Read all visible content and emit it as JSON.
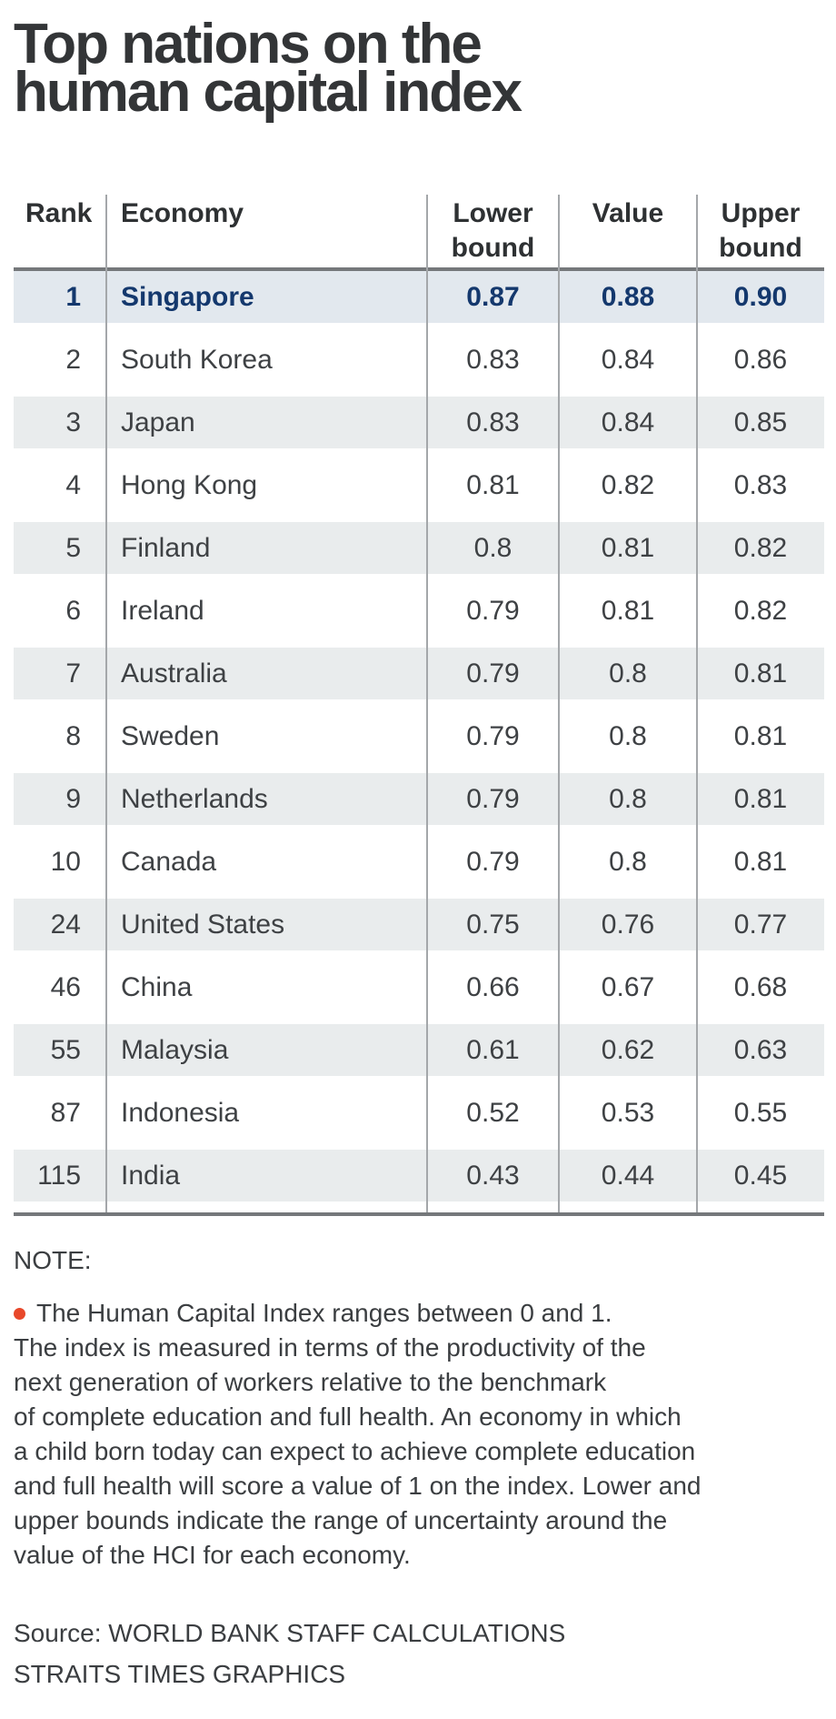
{
  "title": "Top nations on the\nhuman capital index",
  "chart_data": {
    "type": "table",
    "title": "Top nations on the human capital index",
    "columns": [
      "Rank",
      "Economy",
      "Lower bound",
      "Value",
      "Upper bound"
    ],
    "column_headers_display": [
      "Rank",
      "Economy",
      "Lower\nbound",
      "Value",
      "Upper\nbound"
    ],
    "rows": [
      {
        "rank": "1",
        "economy": "Singapore",
        "lower": "0.87",
        "value": "0.88",
        "upper": "0.90",
        "highlight": true
      },
      {
        "rank": "2",
        "economy": "South Korea",
        "lower": "0.83",
        "value": "0.84",
        "upper": "0.86",
        "highlight": false
      },
      {
        "rank": "3",
        "economy": "Japan",
        "lower": "0.83",
        "value": "0.84",
        "upper": "0.85",
        "highlight": false
      },
      {
        "rank": "4",
        "economy": "Hong Kong",
        "lower": "0.81",
        "value": "0.82",
        "upper": "0.83",
        "highlight": false
      },
      {
        "rank": "5",
        "economy": "Finland",
        "lower": "0.8",
        "value": "0.81",
        "upper": "0.82",
        "highlight": false
      },
      {
        "rank": "6",
        "economy": "Ireland",
        "lower": "0.79",
        "value": "0.81",
        "upper": "0.82",
        "highlight": false
      },
      {
        "rank": "7",
        "economy": "Australia",
        "lower": "0.79",
        "value": "0.8",
        "upper": "0.81",
        "highlight": false
      },
      {
        "rank": "8",
        "economy": "Sweden",
        "lower": "0.79",
        "value": "0.8",
        "upper": "0.81",
        "highlight": false
      },
      {
        "rank": "9",
        "economy": "Netherlands",
        "lower": "0.79",
        "value": "0.8",
        "upper": "0.81",
        "highlight": false
      },
      {
        "rank": "10",
        "economy": "Canada",
        "lower": "0.79",
        "value": "0.8",
        "upper": "0.81",
        "highlight": false
      },
      {
        "rank": "24",
        "economy": "United States",
        "lower": "0.75",
        "value": "0.76",
        "upper": "0.77",
        "highlight": false
      },
      {
        "rank": "46",
        "economy": "China",
        "lower": "0.66",
        "value": "0.67",
        "upper": "0.68",
        "highlight": false
      },
      {
        "rank": "55",
        "economy": "Malaysia",
        "lower": "0.61",
        "value": "0.62",
        "upper": "0.63",
        "highlight": false
      },
      {
        "rank": "87",
        "economy": "Indonesia",
        "lower": "0.52",
        "value": "0.53",
        "upper": "0.55",
        "highlight": false
      },
      {
        "rank": "115",
        "economy": "India",
        "lower": "0.43",
        "value": "0.44",
        "upper": "0.45",
        "highlight": false
      }
    ],
    "value_range": [
      0,
      1
    ],
    "legend_position": "none",
    "grid": "zebra-rows"
  },
  "note": {
    "label": "NOTE:",
    "bullet_icon": "red-dot",
    "bullet_line": "The Human Capital Index ranges between 0 and 1.",
    "body": "The index is measured in terms of the productivity of the\nnext generation of workers relative to the benchmark\nof complete education and full health. An economy in which\na child born today can expect to achieve complete education\nand full health will score a value of 1 on the index. Lower and\nupper bounds indicate the range of uncertainty around the\nvalue of the HCI for each economy."
  },
  "source": {
    "line1": "Source: WORLD BANK STAFF CALCULATIONS",
    "line2": "STRAITS TIMES GRAPHICS"
  },
  "colors": {
    "highlight_text": "#14386d",
    "highlight_row_bg": "#e2e8ee",
    "zebra_row_bg": "#e9eced",
    "rule": "#75787b",
    "separator": "#a4a7aa",
    "bullet": "#e8482a",
    "body_text": "#3e4144",
    "title_text": "#333537",
    "note_text": "#3b3e41"
  }
}
